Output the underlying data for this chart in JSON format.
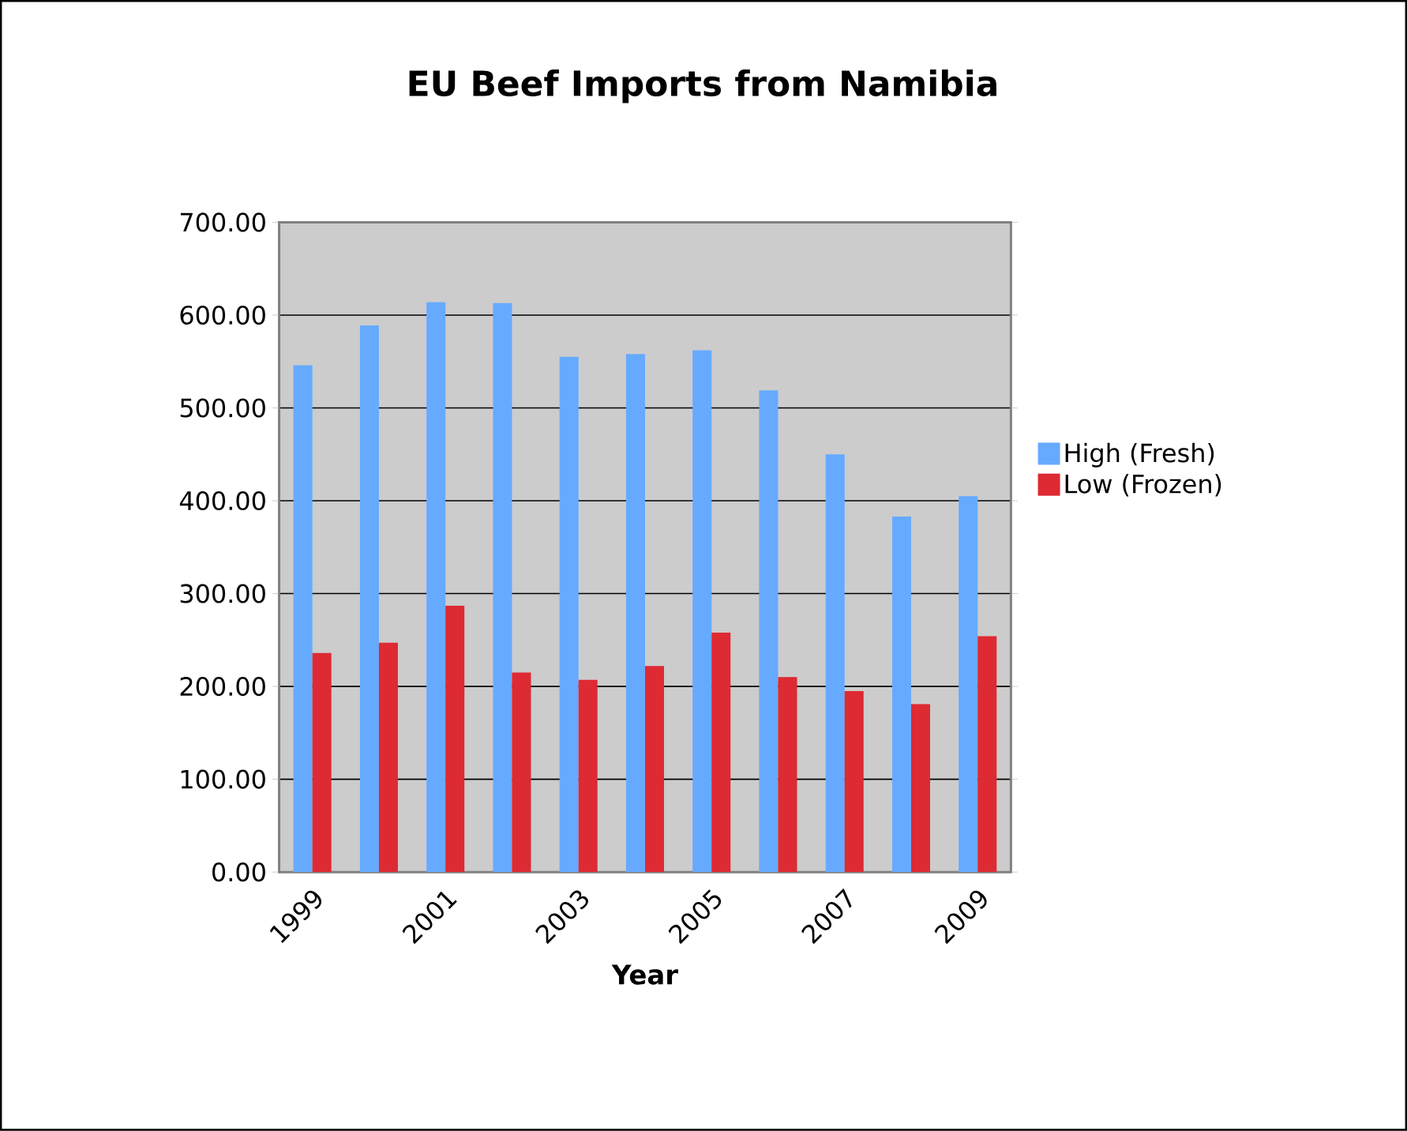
{
  "chart_data": {
    "type": "bar",
    "title": "EU Beef Imports from Namibia",
    "xlabel": "Year",
    "categories": [
      "1999",
      null,
      "2001",
      null,
      "2003",
      null,
      "2005",
      null,
      "2007",
      null,
      "2009"
    ],
    "series": [
      {
        "name": "High (Fresh)",
        "color": "#66aaff",
        "values": [
          546,
          589,
          614,
          613,
          555,
          558,
          562,
          519,
          450,
          383,
          405
        ]
      },
      {
        "name": "Low (Frozen)",
        "color": "#dd2a33",
        "values": [
          236,
          247,
          287,
          215,
          207,
          222,
          258,
          210,
          195,
          181,
          254
        ]
      }
    ],
    "ylim": [
      0,
      700
    ],
    "yticks": [
      {
        "value": 0,
        "label": "0.00"
      },
      {
        "value": 100,
        "label": "100.00"
      },
      {
        "value": 200,
        "label": "200.00"
      },
      {
        "value": 300,
        "label": "300.00"
      },
      {
        "value": 400,
        "label": "400.00"
      },
      {
        "value": 500,
        "label": "500.00"
      },
      {
        "value": 600,
        "label": "600.00"
      },
      {
        "value": 700,
        "label": "700.00"
      }
    ],
    "grid": "y",
    "legend": "right"
  }
}
